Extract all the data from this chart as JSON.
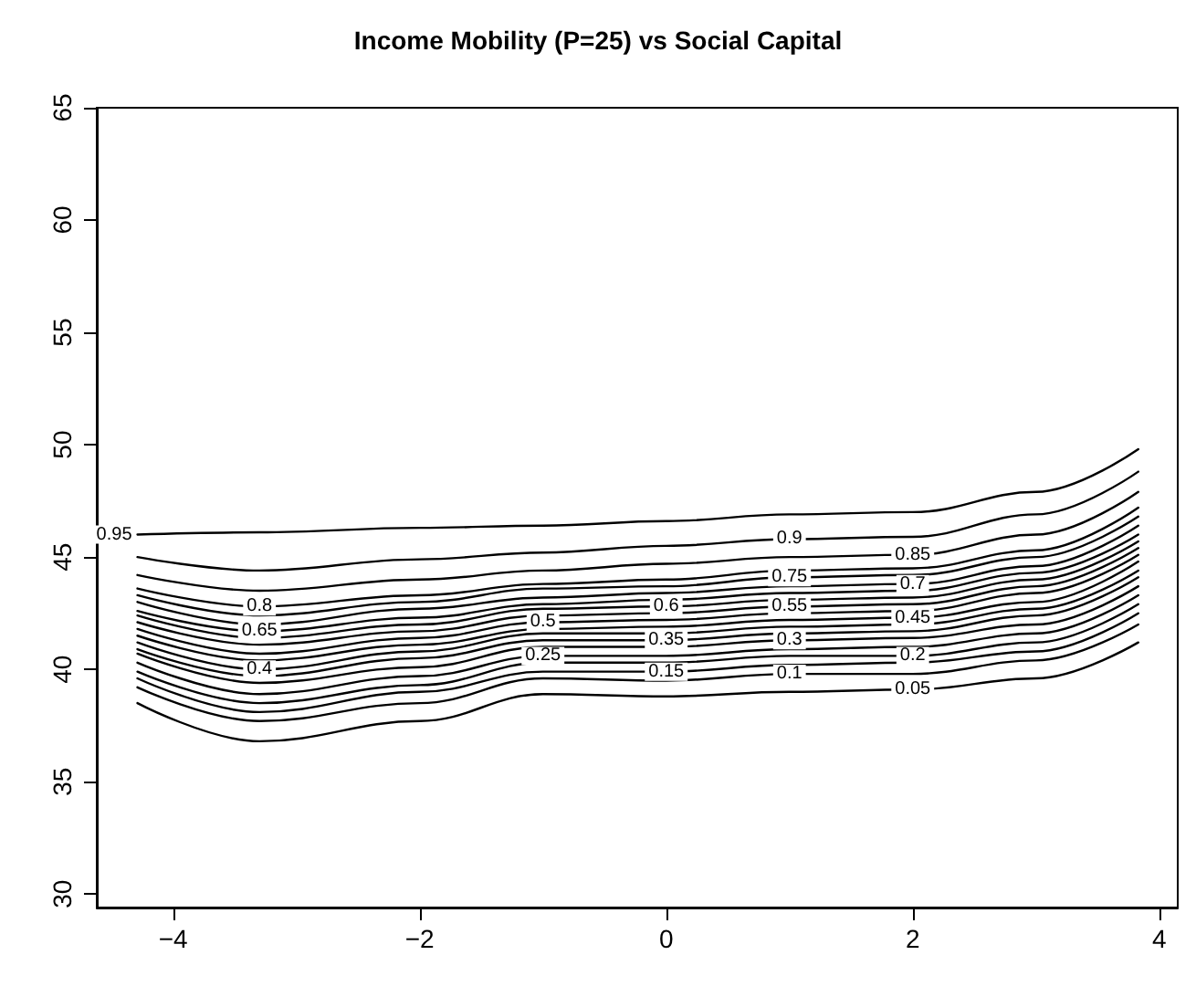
{
  "chart_data": {
    "type": "line",
    "title": "Income Mobility (P=25) vs Social Capital",
    "x": [
      -4.29,
      -3.3,
      -2,
      -1,
      0,
      1,
      2,
      3,
      3.83
    ],
    "xlim": [
      -4.62,
      4.15
    ],
    "xticks": [
      -4,
      -2,
      0,
      2,
      4
    ],
    "ylim": [
      29.4,
      65
    ],
    "yticks": [
      30,
      35,
      40,
      45,
      50,
      55,
      60,
      65
    ],
    "grid": false,
    "legend": false,
    "marker": "none",
    "line_style": "solid",
    "series": [
      {
        "name": "0.95",
        "color": "#000000",
        "values": [
          46.0,
          46.1,
          46.3,
          46.4,
          46.6,
          46.9,
          47.0,
          47.9,
          49.8
        ]
      },
      {
        "name": "0.9",
        "color": "#000000",
        "values": [
          45.0,
          44.4,
          44.9,
          45.2,
          45.5,
          45.8,
          45.9,
          46.9,
          48.8
        ]
      },
      {
        "name": "0.85",
        "color": "#000000",
        "values": [
          44.2,
          43.5,
          44.0,
          44.4,
          44.7,
          45.0,
          45.1,
          46.0,
          47.9
        ]
      },
      {
        "name": "0.8",
        "color": "#000000",
        "values": [
          43.6,
          42.8,
          43.3,
          43.8,
          44.0,
          44.4,
          44.5,
          45.3,
          47.2
        ]
      },
      {
        "name": "0.75",
        "color": "#000000",
        "values": [
          43.3,
          42.4,
          43.0,
          43.6,
          43.7,
          44.1,
          44.2,
          45.0,
          46.8
        ]
      },
      {
        "name": "0.7",
        "color": "#000000",
        "values": [
          43.0,
          42.0,
          42.7,
          43.2,
          43.4,
          43.7,
          43.8,
          44.6,
          46.4
        ]
      },
      {
        "name": "0.65",
        "color": "#000000",
        "values": [
          42.6,
          41.7,
          42.3,
          42.9,
          43.1,
          43.4,
          43.5,
          44.3,
          46.0
        ]
      },
      {
        "name": "0.6",
        "color": "#000000",
        "values": [
          42.4,
          41.4,
          42.0,
          42.7,
          42.8,
          43.1,
          43.2,
          44.0,
          45.7
        ]
      },
      {
        "name": "0.55",
        "color": "#000000",
        "values": [
          42.1,
          41.1,
          41.7,
          42.4,
          42.5,
          42.8,
          42.9,
          43.7,
          45.4
        ]
      },
      {
        "name": "0.5",
        "color": "#000000",
        "values": [
          41.8,
          40.7,
          41.4,
          42.1,
          42.2,
          42.5,
          42.6,
          43.4,
          45.1
        ]
      },
      {
        "name": "0.45",
        "color": "#000000",
        "values": [
          41.5,
          40.4,
          41.1,
          41.8,
          41.9,
          42.2,
          42.3,
          43.0,
          44.8
        ]
      },
      {
        "name": "0.4",
        "color": "#000000",
        "values": [
          41.2,
          40.0,
          40.8,
          41.6,
          41.6,
          41.9,
          42.0,
          42.7,
          44.4
        ]
      },
      {
        "name": "0.35",
        "color": "#000000",
        "values": [
          40.9,
          39.7,
          40.5,
          41.3,
          41.3,
          41.6,
          41.7,
          42.4,
          44.1
        ]
      },
      {
        "name": "0.3",
        "color": "#000000",
        "values": [
          40.7,
          39.4,
          40.1,
          41.0,
          41.0,
          41.3,
          41.4,
          42.0,
          43.7
        ]
      },
      {
        "name": "0.25",
        "color": "#000000",
        "values": [
          40.3,
          38.9,
          39.7,
          40.6,
          40.6,
          40.9,
          41.0,
          41.6,
          43.3
        ]
      },
      {
        "name": "0.2",
        "color": "#000000",
        "values": [
          39.9,
          38.5,
          39.3,
          40.3,
          40.3,
          40.6,
          40.6,
          41.2,
          42.9
        ]
      },
      {
        "name": "0.15",
        "color": "#000000",
        "values": [
          39.6,
          38.1,
          39.0,
          39.9,
          39.9,
          40.2,
          40.3,
          40.8,
          42.5
        ]
      },
      {
        "name": "0.1",
        "color": "#000000",
        "values": [
          39.2,
          37.7,
          38.5,
          39.6,
          39.5,
          39.8,
          39.8,
          40.4,
          42.0
        ]
      },
      {
        "name": "0.05",
        "color": "#000000",
        "values": [
          38.5,
          36.8,
          37.7,
          38.9,
          38.8,
          39.0,
          39.1,
          39.6,
          41.2
        ]
      }
    ]
  }
}
